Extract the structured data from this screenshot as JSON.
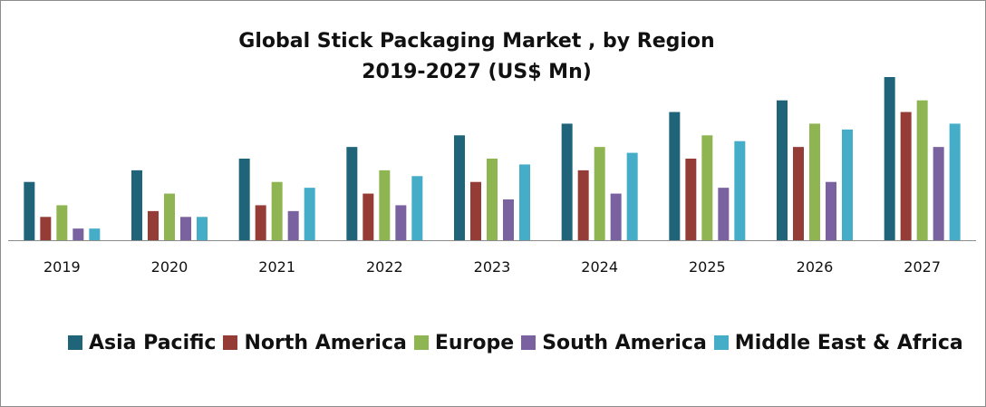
{
  "chart_data": {
    "type": "bar",
    "title_line1": "Global Stick Packaging Market , by Region",
    "title_line2": "2019-2027 (US$ Mn)",
    "categories": [
      "2019",
      "2020",
      "2021",
      "2022",
      "2023",
      "2024",
      "2025",
      "2026",
      "2027"
    ],
    "series": [
      {
        "name": "Asia Pacific",
        "color": "#1f6478",
        "values": [
          5,
          6,
          7,
          8,
          9,
          10,
          11,
          12,
          14
        ]
      },
      {
        "name": "North America",
        "color": "#963c37",
        "values": [
          2,
          2.5,
          3,
          4,
          5,
          6,
          7,
          8,
          11
        ]
      },
      {
        "name": "Europe",
        "color": "#8fb552",
        "values": [
          3,
          4,
          5,
          6,
          7,
          8,
          9,
          10,
          12
        ]
      },
      {
        "name": "South America",
        "color": "#7a62a0",
        "values": [
          1,
          2,
          2.5,
          3,
          3.5,
          4,
          4.5,
          5,
          8
        ]
      },
      {
        "name": "Middle East & Africa",
        "color": "#45adc7",
        "values": [
          1,
          2,
          4.5,
          5.5,
          6.5,
          7.5,
          8.5,
          9.5,
          10
        ]
      }
    ],
    "ylim": [
      0,
      14
    ],
    "xlabel": "",
    "ylabel": "",
    "legend_position": "bottom",
    "grid": false
  }
}
